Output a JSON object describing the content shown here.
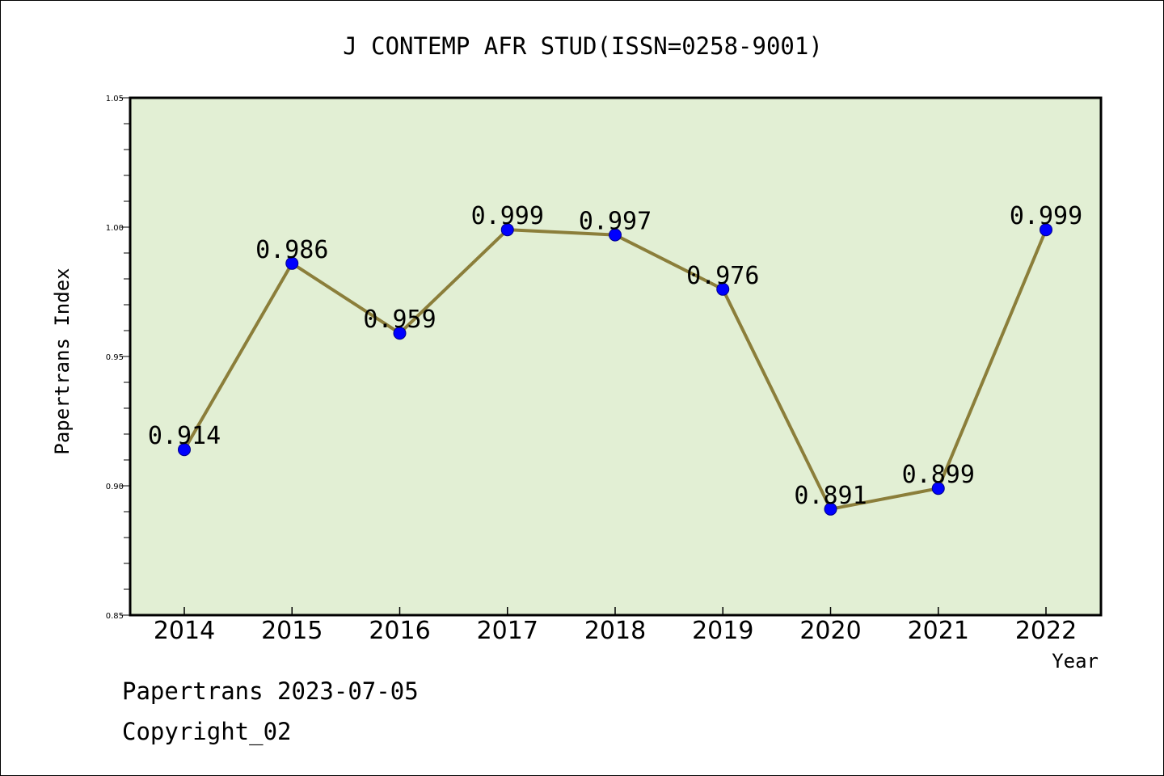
{
  "chart_data": {
    "type": "line",
    "title": "J CONTEMP AFR STUD(ISSN=0258-9001)",
    "xlabel": "Year",
    "ylabel": "Papertrans Index",
    "categories": [
      "2014",
      "2015",
      "2016",
      "2017",
      "2018",
      "2019",
      "2020",
      "2021",
      "2022"
    ],
    "values": [
      0.914,
      0.986,
      0.959,
      0.999,
      0.997,
      0.976,
      0.891,
      0.899,
      0.999
    ],
    "data_labels": [
      "0.914",
      "0.986",
      "0.959",
      "0.999",
      "0.997",
      "0.976",
      "0.891",
      "0.899",
      "0.999"
    ],
    "ylim": [
      0.85,
      1.05
    ],
    "yticks": [
      "0.85",
      "0.90",
      "0.95",
      "1.00",
      "1.05"
    ],
    "grid": false,
    "colors": {
      "plot_background": "#e2efd4",
      "line": "#8b7e3a",
      "marker": "#0000ff"
    }
  },
  "footer": {
    "line1": "Papertrans 2023-07-05",
    "line2": "Copyright_02"
  }
}
